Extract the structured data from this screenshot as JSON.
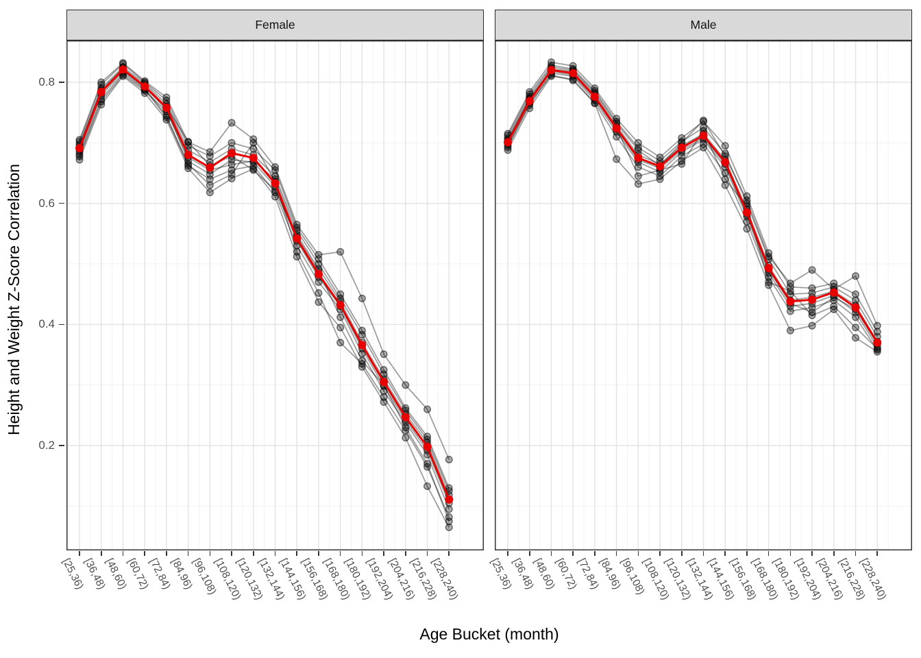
{
  "figure": {
    "x_axis_title": "Age Bucket (month)",
    "y_axis_title": "Height and Weight Z-Score Correlation"
  },
  "chart_data": {
    "type": "line",
    "title": "",
    "xlabel": "Age Bucket (month)",
    "ylabel": "Height and Weight Z-Score Correlation",
    "categories": [
      "[25,36)",
      "[36,48)",
      "[48,60)",
      "[60,72)",
      "[72,84)",
      "[84,96)",
      "[96,108)",
      "[108,120)",
      "[120,132)",
      "[132,144)",
      "[144,156)",
      "[156,168)",
      "[168,180)",
      "[180,192)",
      "[192,204)",
      "[204,216)",
      "[216,228)",
      "[228,240)"
    ],
    "y_ticks": [
      0.8,
      0.6,
      0.4,
      0.2
    ],
    "y_minor_ticks": [
      0.7,
      0.5,
      0.3,
      0.1
    ],
    "ylim": [
      0.027,
      0.869
    ],
    "grid": true,
    "legend": "none",
    "facet_layout": "two panels side by side, shared y axis",
    "panels": [
      {
        "facet": "Female",
        "mean_series": {
          "name": "mean",
          "values": [
            0.691,
            0.784,
            0.821,
            0.793,
            0.758,
            0.68,
            0.659,
            0.683,
            0.675,
            0.633,
            0.542,
            0.483,
            0.432,
            0.366,
            0.305,
            0.247,
            0.198,
            0.111
          ]
        },
        "series": [
          {
            "name": "subject-1",
            "values": [
              0.677,
              0.768,
              0.812,
              0.786,
              0.752,
              0.676,
              0.655,
              0.664,
              0.67,
              0.64,
              0.548,
              0.492,
              0.438,
              0.37,
              0.31,
              0.252,
              0.205,
              0.118
            ]
          },
          {
            "name": "subject-2",
            "values": [
              0.684,
              0.778,
              0.818,
              0.79,
              0.745,
              0.662,
              0.64,
              0.655,
              0.662,
              0.618,
              0.53,
              0.47,
              0.425,
              0.352,
              0.29,
              0.238,
              0.185,
              0.095
            ]
          },
          {
            "name": "subject-3",
            "values": [
              0.695,
              0.79,
              0.825,
              0.798,
              0.764,
              0.688,
              0.668,
              0.69,
              0.68,
              0.645,
              0.555,
              0.5,
              0.443,
              0.383,
              0.318,
              0.258,
              0.21,
              0.125
            ]
          },
          {
            "name": "subject-4",
            "values": [
              0.688,
              0.782,
              0.82,
              0.792,
              0.755,
              0.67,
              0.648,
              0.672,
              0.668,
              0.628,
              0.538,
              0.478,
              0.43,
              0.36,
              0.298,
              0.242,
              0.192,
              0.105
            ]
          },
          {
            "name": "subject-5",
            "values": [
              0.702,
              0.796,
              0.83,
              0.8,
              0.77,
              0.695,
              0.678,
              0.7,
              0.69,
              0.655,
              0.56,
              0.508,
              0.45,
              0.39,
              0.325,
              0.262,
              0.215,
              0.13
            ]
          },
          {
            "name": "subject-6",
            "values": [
              0.672,
              0.763,
              0.81,
              0.782,
              0.738,
              0.658,
              0.618,
              0.641,
              0.657,
              0.611,
              0.512,
              0.437,
              0.395,
              0.33,
              0.272,
              0.213,
              0.133,
              0.065
            ]
          },
          {
            "name": "subject-7",
            "values": [
              0.705,
              0.8,
              0.832,
              0.802,
              0.775,
              0.701,
              0.685,
              0.733,
              0.706,
              0.66,
              0.565,
              0.515,
              0.52,
              0.443,
              0.351,
              0.3,
              0.26,
              0.177
            ]
          },
          {
            "name": "subject-8",
            "values": [
              0.68,
              0.772,
              0.815,
              0.788,
              0.742,
              0.665,
              0.63,
              0.648,
              0.7,
              0.636,
              0.52,
              0.452,
              0.37,
              0.335,
              0.28,
              0.225,
              0.165,
              0.082
            ]
          },
          {
            "name": "subject-9",
            "values": [
              0.698,
              0.787,
              0.823,
              0.795,
              0.76,
              0.702,
              0.662,
              0.678,
              0.655,
              0.622,
              0.545,
              0.488,
              0.412,
              0.34,
              0.3,
              0.23,
              0.17,
              0.075
            ]
          }
        ]
      },
      {
        "facet": "Male",
        "mean_series": {
          "name": "mean",
          "values": [
            0.701,
            0.769,
            0.82,
            0.815,
            0.776,
            0.724,
            0.675,
            0.661,
            0.692,
            0.712,
            0.668,
            0.585,
            0.493,
            0.438,
            0.441,
            0.453,
            0.428,
            0.37
          ]
        },
        "series": [
          {
            "name": "subject-1",
            "values": [
              0.705,
              0.772,
              0.822,
              0.818,
              0.78,
              0.728,
              0.68,
              0.665,
              0.695,
              0.715,
              0.672,
              0.59,
              0.497,
              0.44,
              0.445,
              0.455,
              0.432,
              0.372
            ]
          },
          {
            "name": "subject-2",
            "values": [
              0.695,
              0.762,
              0.815,
              0.81,
              0.77,
              0.718,
              0.668,
              0.652,
              0.685,
              0.705,
              0.66,
              0.578,
              0.485,
              0.43,
              0.435,
              0.448,
              0.42,
              0.363
            ]
          },
          {
            "name": "subject-3",
            "values": [
              0.712,
              0.78,
              0.828,
              0.822,
              0.786,
              0.735,
              0.692,
              0.67,
              0.702,
              0.725,
              0.682,
              0.6,
              0.508,
              0.45,
              0.452,
              0.462,
              0.44,
              0.38
            ]
          },
          {
            "name": "subject-4",
            "values": [
              0.688,
              0.757,
              0.81,
              0.805,
              0.766,
              0.71,
              0.66,
              0.645,
              0.678,
              0.698,
              0.65,
              0.57,
              0.478,
              0.422,
              0.428,
              0.44,
              0.412,
              0.358
            ]
          },
          {
            "name": "subject-5",
            "values": [
              0.715,
              0.784,
              0.833,
              0.827,
              0.79,
              0.74,
              0.7,
              0.676,
              0.708,
              0.735,
              0.695,
              0.612,
              0.518,
              0.462,
              0.46,
              0.468,
              0.45,
              0.388
            ]
          },
          {
            "name": "subject-6",
            "values": [
              0.692,
              0.765,
              0.812,
              0.803,
              0.765,
              0.673,
              0.632,
              0.64,
              0.67,
              0.692,
              0.63,
              0.558,
              0.465,
              0.39,
              0.398,
              0.425,
              0.378,
              0.355
            ]
          },
          {
            "name": "subject-7",
            "values": [
              0.708,
              0.776,
              0.825,
              0.82,
              0.783,
              0.732,
              0.688,
              0.662,
              0.7,
              0.737,
              0.678,
              0.605,
              0.512,
              0.468,
              0.49,
              0.458,
              0.48,
              0.398
            ]
          },
          {
            "name": "subject-8",
            "values": [
              0.698,
              0.768,
              0.818,
              0.812,
              0.774,
              0.722,
              0.672,
              0.658,
              0.688,
              0.708,
              0.665,
              0.582,
              0.49,
              0.435,
              0.42,
              0.445,
              0.425,
              0.368
            ]
          },
          {
            "name": "subject-9",
            "values": [
              0.703,
              0.773,
              0.82,
              0.815,
              0.777,
              0.725,
              0.645,
              0.655,
              0.665,
              0.72,
              0.64,
              0.595,
              0.47,
              0.455,
              0.415,
              0.43,
              0.395,
              0.36
            ]
          }
        ]
      }
    ],
    "style": {
      "mean_color": "#e80000",
      "individual_color": "#000000",
      "strip_bg": "#d9d9d9",
      "panel_border": "#333333",
      "grid_major": "#e4e4e4",
      "grid_minor": "#f1f1f1",
      "axis_text_color": "#4d4d4d",
      "tick_color": "#333333"
    }
  }
}
